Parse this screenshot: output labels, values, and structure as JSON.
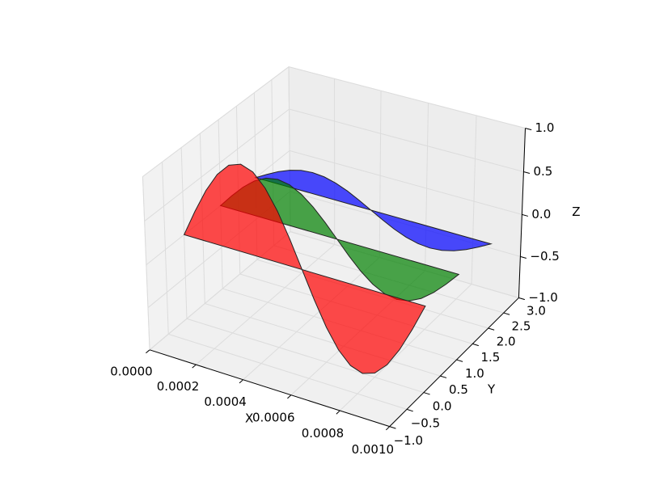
{
  "chart_data": {
    "type": "polygon",
    "x_label": "X",
    "y_label": "Y",
    "z_label": "Z",
    "x": [
      0,
      5e-05,
      0.0001,
      0.00015,
      0.0002,
      0.00025,
      0.0003,
      0.00035,
      0.0004,
      0.00045,
      0.0005,
      0.00055,
      0.0006,
      0.00065,
      0.0007,
      0.00075,
      0.0008,
      0.00085,
      0.0009,
      0.00095,
      0.001
    ],
    "series": [
      {
        "color": "#0000ff",
        "y": 2,
        "values": [
          0,
          0.077,
          0.147,
          0.202,
          0.238,
          0.25,
          0.238,
          0.202,
          0.147,
          0.077,
          0,
          -0.077,
          -0.147,
          -0.202,
          -0.238,
          -0.25,
          -0.238,
          -0.202,
          -0.147,
          -0.077,
          0
        ]
      },
      {
        "color": "#008000",
        "y": 1,
        "values": [
          0,
          0.155,
          0.294,
          0.405,
          0.476,
          0.5,
          0.476,
          0.405,
          0.294,
          0.155,
          0,
          -0.155,
          -0.294,
          -0.405,
          -0.476,
          -0.5,
          -0.476,
          -0.405,
          -0.294,
          -0.155,
          0
        ]
      },
      {
        "color": "#ff0000",
        "y": 0,
        "values": [
          0,
          0.309,
          0.588,
          0.809,
          0.951,
          1,
          0.951,
          0.809,
          0.588,
          0.309,
          0,
          -0.309,
          -0.588,
          -0.809,
          -0.951,
          -1,
          -0.951,
          -0.809,
          -0.588,
          -0.309,
          0
        ]
      }
    ],
    "xlim": [
      0,
      0.001
    ],
    "xticks": [
      {
        "value": 0,
        "label": "0.0000"
      },
      {
        "value": 0.0002,
        "label": "0.0002"
      },
      {
        "value": 0.0004,
        "label": "0.0004"
      },
      {
        "value": 0.0006,
        "label": "0.0006"
      },
      {
        "value": 0.0008,
        "label": "0.0008"
      },
      {
        "value": 0.001,
        "label": "0.0010"
      }
    ],
    "ylim": [
      -1,
      3
    ],
    "yticks": [
      {
        "value": -1,
        "label": "−1.0"
      },
      {
        "value": -0.5,
        "label": "−0.5"
      },
      {
        "value": 0,
        "label": "0.0"
      },
      {
        "value": 0.5,
        "label": "0.5"
      },
      {
        "value": 1,
        "label": "1.0"
      },
      {
        "value": 1.5,
        "label": "1.5"
      },
      {
        "value": 2,
        "label": "2.0"
      },
      {
        "value": 2.5,
        "label": "2.5"
      },
      {
        "value": 3,
        "label": "3.0"
      }
    ],
    "zlim": [
      -1,
      1
    ],
    "zticks": [
      {
        "value": -1,
        "label": "−1.0"
      },
      {
        "value": -0.5,
        "label": "−0.5"
      },
      {
        "value": 0,
        "label": "0.0"
      },
      {
        "value": 0.5,
        "label": "0.5"
      },
      {
        "value": 1,
        "label": "1.0"
      }
    ],
    "grid": true
  }
}
